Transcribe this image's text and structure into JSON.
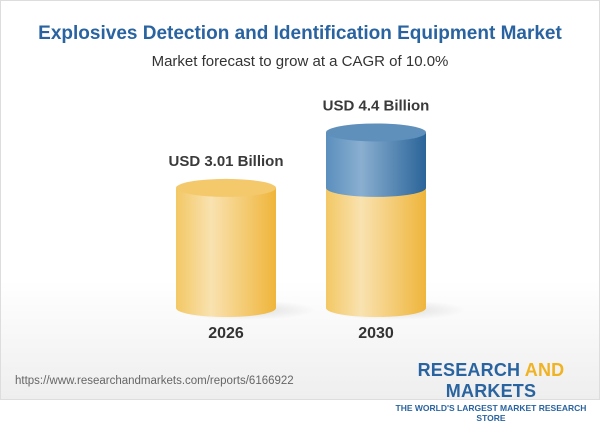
{
  "chart_data": {
    "type": "bar",
    "style": "3d-cylinder",
    "title": "Explosives Detection and Identification Equipment Market",
    "subtitle": "Market forecast to grow at a CAGR of 10.0%",
    "categories": [
      "2026",
      "2030"
    ],
    "values": [
      3.01,
      4.4
    ],
    "unit": "USD Billion",
    "data_labels": [
      "USD 3.01 Billion",
      "USD 4.4 Billion"
    ],
    "colors": {
      "base": "#f2c05a",
      "growth": "#3f7bb0",
      "title": "#2a64a0"
    },
    "grid": false
  },
  "footer": {
    "url": "https://www.researchandmarkets.com/reports/6166922",
    "logo_research": "RESEARCH",
    "logo_and": "AND",
    "logo_markets": "MARKETS",
    "logo_tagline": "THE WORLD'S LARGEST MARKET RESEARCH STORE"
  }
}
